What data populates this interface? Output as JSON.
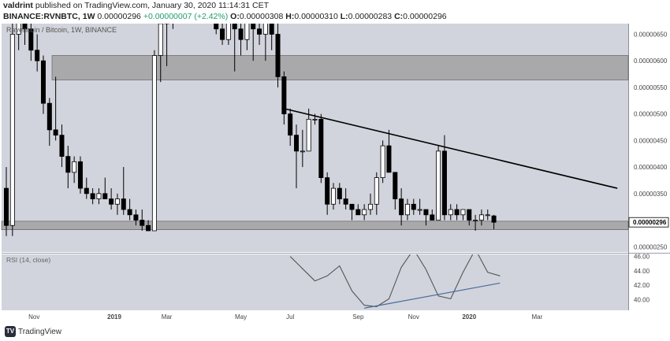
{
  "header": {
    "author": "valdrint",
    "published": "published on TradingView.com, January 30, 2020 11:14:31 CET",
    "symbol": "BINANCE:RVNBTC, 1W",
    "last": "0.00000296",
    "change": "+0.00000007 (+2.42%)",
    "o_label": "O:",
    "o_value": "0.00000308",
    "h_label": "H:",
    "h_value": "0.00000310",
    "l_label": "L:",
    "l_value": "0.00000283",
    "c_label": "C:",
    "c_value": "0.00000296"
  },
  "footer": {
    "brand": "TradingView"
  },
  "colors": {
    "plot_bg": "#d1d4dc",
    "zone": "#9b9b9b",
    "candle_up_fill": "#ffffff",
    "candle_down_fill": "#000000",
    "candle_outline": "#000000",
    "trendline": "#000000",
    "rsi_line": "#555555",
    "rsi_trend": "#4a6a9e"
  },
  "chart_data": [
    {
      "type": "candlestick",
      "title": "Ravencoin / Bitcoin, 1W, BINANCE",
      "last_price_label": "0.00000296",
      "y_ticks": [
        "0.00000250",
        "0.00000300",
        "0.00000350",
        "0.00000400",
        "0.00000450",
        "0.00000500",
        "0.00000550",
        "0.00000600",
        "0.00000650"
      ],
      "y_tick_values": [
        2.5e-06,
        3e-06,
        3.5e-06,
        4e-06,
        4.5e-06,
        5e-06,
        5.5e-06,
        6e-06,
        6.5e-06
      ],
      "ylim": [
        2.4e-06,
        6.7e-06
      ],
      "x_ticks": [
        "Nov",
        "2019",
        "Mar",
        "May",
        "Jul",
        "Sep",
        "Nov",
        "2020",
        "Mar"
      ],
      "x_tick_index": [
        4.5,
        17.5,
        26,
        38,
        46,
        57,
        66,
        75,
        86
      ],
      "zones": [
        {
          "low": 5.64e-06,
          "high": 6.1e-06
        },
        {
          "low": 2.82e-06,
          "high": 2.98e-06
        }
      ],
      "trendline": {
        "i0": 45,
        "p0": 5.1e-06,
        "i1": 99,
        "p1": 3.6e-06
      },
      "candles": [
        {
          "o": 3.6e-06,
          "h": 4e-06,
          "l": 2.7e-06,
          "c": 2.9e-06
        },
        {
          "o": 2.9e-06,
          "h": 6.9e-06,
          "l": 2.7e-06,
          "c": 6.5e-06
        },
        {
          "o": 6.5e-06,
          "h": 6.9e-06,
          "l": 6.2e-06,
          "c": 6.8e-06
        },
        {
          "o": 6.8e-06,
          "h": 7e-06,
          "l": 6.3e-06,
          "c": 6.6e-06
        },
        {
          "o": 6.6e-06,
          "h": 6.8e-06,
          "l": 6e-06,
          "c": 6.2e-06
        },
        {
          "o": 6.2e-06,
          "h": 6.5e-06,
          "l": 5.8e-06,
          "c": 6e-06
        },
        {
          "o": 6e-06,
          "h": 6.1e-06,
          "l": 5e-06,
          "c": 5.2e-06
        },
        {
          "o": 5.2e-06,
          "h": 5.3e-06,
          "l": 4.4e-06,
          "c": 4.7e-06
        },
        {
          "o": 4.7e-06,
          "h": 5.7e-06,
          "l": 4.5e-06,
          "c": 4.6e-06
        },
        {
          "o": 4.6e-06,
          "h": 4.8e-06,
          "l": 4e-06,
          "c": 4.2e-06
        },
        {
          "o": 4.2e-06,
          "h": 4.4e-06,
          "l": 3.6e-06,
          "c": 3.9e-06
        },
        {
          "o": 3.9e-06,
          "h": 4.2e-06,
          "l": 3.7e-06,
          "c": 4.1e-06
        },
        {
          "o": 4.1e-06,
          "h": 4.2e-06,
          "l": 3.5e-06,
          "c": 3.6e-06
        },
        {
          "o": 3.6e-06,
          "h": 3.8e-06,
          "l": 3.4e-06,
          "c": 3.5e-06
        },
        {
          "o": 3.5e-06,
          "h": 3.6e-06,
          "l": 3.3e-06,
          "c": 3.4e-06
        },
        {
          "o": 3.4e-06,
          "h": 3.6e-06,
          "l": 3.3e-06,
          "c": 3.5e-06
        },
        {
          "o": 3.5e-06,
          "h": 3.8e-06,
          "l": 3.4e-06,
          "c": 3.4e-06
        },
        {
          "o": 3.4e-06,
          "h": 3.6e-06,
          "l": 3.2e-06,
          "c": 3.3e-06
        },
        {
          "o": 3.3e-06,
          "h": 3.5e-06,
          "l": 3.1e-06,
          "c": 3.4e-06
        },
        {
          "o": 3.4e-06,
          "h": 4e-06,
          "l": 3.1e-06,
          "c": 3.2e-06
        },
        {
          "o": 3.2e-06,
          "h": 3.4e-06,
          "l": 3e-06,
          "c": 3.1e-06
        },
        {
          "o": 3.1e-06,
          "h": 3.2e-06,
          "l": 2.9e-06,
          "c": 3e-06
        },
        {
          "o": 3e-06,
          "h": 3.2e-06,
          "l": 2.8e-06,
          "c": 2.9e-06
        },
        {
          "o": 2.9e-06,
          "h": 3e-06,
          "l": 2.8e-06,
          "c": 2.8e-06
        },
        {
          "o": 2.8e-06,
          "h": 6.2e-06,
          "l": 2.8e-06,
          "c": 6.1e-06
        },
        {
          "o": 6.1e-06,
          "h": 6.9e-06,
          "l": 5.6e-06,
          "c": 6.7e-06
        },
        {
          "o": 6.7e-06,
          "h": 7e-06,
          "l": 5.9e-06,
          "c": 6.9e-06
        },
        {
          "o": 6.9e-06,
          "h": 7.1e-06,
          "l": 6.6e-06,
          "c": 7e-06
        },
        {
          "o": 7e-06,
          "h": 7.2e-06,
          "l": 6.7e-06,
          "c": 7.1e-06
        },
        {
          "o": 7.1e-06,
          "h": 7.2e-06,
          "l": 6.8e-06,
          "c": 7e-06
        },
        {
          "o": 7e-06,
          "h": 7.1e-06,
          "l": 6.8e-06,
          "c": 7.1e-06
        },
        {
          "o": 7.1e-06,
          "h": 7.2e-06,
          "l": 6.9e-06,
          "c": 7.1e-06
        },
        {
          "o": 7.1e-06,
          "h": 7.2e-06,
          "l": 6.9e-06,
          "c": 7e-06
        },
        {
          "o": 7e-06,
          "h": 7.1e-06,
          "l": 6.7e-06,
          "c": 7.1e-06
        },
        {
          "o": 7.1e-06,
          "h": 7.2e-06,
          "l": 6.5e-06,
          "c": 6.6e-06
        },
        {
          "o": 6.6e-06,
          "h": 6.8e-06,
          "l": 6.3e-06,
          "c": 6.4e-06
        },
        {
          "o": 6.4e-06,
          "h": 6.8e-06,
          "l": 6.3e-06,
          "c": 6.8e-06
        },
        {
          "o": 6.8e-06,
          "h": 6.9e-06,
          "l": 5.8e-06,
          "c": 6.6e-06
        },
        {
          "o": 6.6e-06,
          "h": 6.7e-06,
          "l": 6.1e-06,
          "c": 6.4e-06
        },
        {
          "o": 6.4e-06,
          "h": 6.9e-06,
          "l": 6.2e-06,
          "c": 6.8e-06
        },
        {
          "o": 6.8e-06,
          "h": 6.9e-06,
          "l": 6e-06,
          "c": 6.6e-06
        },
        {
          "o": 6.6e-06,
          "h": 6.8e-06,
          "l": 6.3e-06,
          "c": 6.5e-06
        },
        {
          "o": 6.5e-06,
          "h": 6.9e-06,
          "l": 6e-06,
          "c": 6.8e-06
        },
        {
          "o": 6.8e-06,
          "h": 6.9e-06,
          "l": 6.2e-06,
          "c": 6.5e-06
        },
        {
          "o": 6.5e-06,
          "h": 6.8e-06,
          "l": 5.5e-06,
          "c": 5.7e-06
        },
        {
          "o": 5.7e-06,
          "h": 5.8e-06,
          "l": 4.8e-06,
          "c": 5e-06
        },
        {
          "o": 5e-06,
          "h": 5.1e-06,
          "l": 4.4e-06,
          "c": 4.6e-06
        },
        {
          "o": 4.6e-06,
          "h": 4.8e-06,
          "l": 3.6e-06,
          "c": 4.3e-06
        },
        {
          "o": 4.3e-06,
          "h": 4.7e-06,
          "l": 4e-06,
          "c": 4.3e-06
        },
        {
          "o": 4.3e-06,
          "h": 5.1e-06,
          "l": 4.3e-06,
          "c": 4.9e-06
        },
        {
          "o": 4.9e-06,
          "h": 5e-06,
          "l": 4.8e-06,
          "c": 4.9e-06
        },
        {
          "o": 4.9e-06,
          "h": 5e-06,
          "l": 3.7e-06,
          "c": 3.8e-06
        },
        {
          "o": 3.8e-06,
          "h": 3.9e-06,
          "l": 3.1e-06,
          "c": 3.3e-06
        },
        {
          "o": 3.3e-06,
          "h": 3.7e-06,
          "l": 3.2e-06,
          "c": 3.6e-06
        },
        {
          "o": 3.6e-06,
          "h": 3.7e-06,
          "l": 3.3e-06,
          "c": 3.4e-06
        },
        {
          "o": 3.4e-06,
          "h": 3.6e-06,
          "l": 3.2e-06,
          "c": 3.3e-06
        },
        {
          "o": 3.3e-06,
          "h": 3.3e-06,
          "l": 3e-06,
          "c": 3.2e-06
        },
        {
          "o": 3.2e-06,
          "h": 3.3e-06,
          "l": 3.1e-06,
          "c": 3.1e-06
        },
        {
          "o": 3.1e-06,
          "h": 3.3e-06,
          "l": 3e-06,
          "c": 3.2e-06
        },
        {
          "o": 3.2e-06,
          "h": 3.5e-06,
          "l": 3.1e-06,
          "c": 3.3e-06
        },
        {
          "o": 3.3e-06,
          "h": 3.9e-06,
          "l": 3.1e-06,
          "c": 3.8e-06
        },
        {
          "o": 3.8e-06,
          "h": 4.5e-06,
          "l": 3.7e-06,
          "c": 4.4e-06
        },
        {
          "o": 4.4e-06,
          "h": 4.7e-06,
          "l": 3.9e-06,
          "c": 3.9e-06
        },
        {
          "o": 3.9e-06,
          "h": 3.9e-06,
          "l": 3.2e-06,
          "c": 3.4e-06
        },
        {
          "o": 3.4e-06,
          "h": 3.6e-06,
          "l": 2.9e-06,
          "c": 3.1e-06
        },
        {
          "o": 3.1e-06,
          "h": 3.4e-06,
          "l": 3e-06,
          "c": 3.3e-06
        },
        {
          "o": 3.3e-06,
          "h": 3.4e-06,
          "l": 3.1e-06,
          "c": 3.2e-06
        },
        {
          "o": 3.2e-06,
          "h": 3.4e-06,
          "l": 3.1e-06,
          "c": 3.2e-06
        },
        {
          "o": 3.2e-06,
          "h": 3.2e-06,
          "l": 2.9e-06,
          "c": 3.1e-06
        },
        {
          "o": 3.1e-06,
          "h": 3.2e-06,
          "l": 3e-06,
          "c": 3e-06
        },
        {
          "o": 3e-06,
          "h": 4.4e-06,
          "l": 3e-06,
          "c": 4.3e-06
        },
        {
          "o": 4.3e-06,
          "h": 4.6e-06,
          "l": 3e-06,
          "c": 3.1e-06
        },
        {
          "o": 3.1e-06,
          "h": 3.3e-06,
          "l": 3e-06,
          "c": 3.2e-06
        },
        {
          "o": 3.2e-06,
          "h": 3.3e-06,
          "l": 3e-06,
          "c": 3.1e-06
        },
        {
          "o": 3.1e-06,
          "h": 3.2e-06,
          "l": 3e-06,
          "c": 3.2e-06
        },
        {
          "o": 3.2e-06,
          "h": 3.2e-06,
          "l": 2.9e-06,
          "c": 3e-06
        },
        {
          "o": 3e-06,
          "h": 3.1e-06,
          "l": 2.8e-06,
          "c": 3e-06
        },
        {
          "o": 3e-06,
          "h": 3.2e-06,
          "l": 2.9e-06,
          "c": 3.1e-06
        },
        {
          "o": 3.1e-06,
          "h": 3.2e-06,
          "l": 3e-06,
          "c": 3.1e-06
        },
        {
          "o": 3.08e-06,
          "h": 3.1e-06,
          "l": 2.83e-06,
          "c": 2.96e-06
        }
      ]
    },
    {
      "type": "line",
      "title": "RSI (14, close)",
      "y_ticks": [
        "40.00",
        "42.00",
        "44.00",
        "46.00"
      ],
      "y_tick_values": [
        40,
        42,
        44,
        46
      ],
      "ylim": [
        38.5,
        46.3
      ],
      "x_index": [
        46,
        48,
        50,
        52,
        54,
        56,
        58,
        60,
        62,
        64,
        66,
        68,
        70,
        72,
        74,
        76,
        78,
        80
      ],
      "values": [
        46,
        44.3,
        42.6,
        43.3,
        44.7,
        41.2,
        39.2,
        39.0,
        40.1,
        44.5,
        47,
        44.2,
        40.5,
        40.1,
        43.8,
        47,
        43.8,
        43.3
      ],
      "trend": {
        "i0": 58,
        "v0": 38.8,
        "i1": 80,
        "v1": 42.3
      }
    }
  ]
}
